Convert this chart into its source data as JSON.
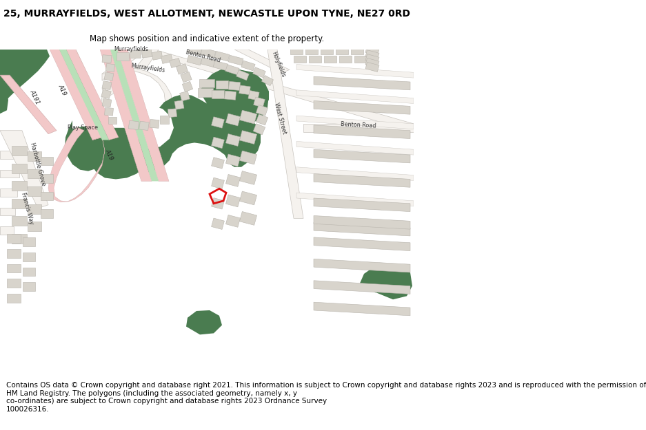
{
  "title": "25, MURRAYFIELDS, WEST ALLOTMENT, NEWCASTLE UPON TYNE, NE27 0RD",
  "subtitle": "Map shows position and indicative extent of the property.",
  "footer": "Contains OS data © Crown copyright and database right 2021. This information is subject to Crown copyright and database rights 2023 and is reproduced with the permission of\nHM Land Registry. The polygons (including the associated geometry, namely x, y\nco-ordinates) are subject to Crown copyright and database rights 2023 Ordnance Survey\n100026316.",
  "green": "#4a7c50",
  "light_green_road": "#b8e0b8",
  "pink_road": "#f2c8c8",
  "building": "#d8d4cc",
  "bedge": "#b8b4ac",
  "road_white": "#f5f2ee",
  "red": "#dd1111",
  "title_fs": 10,
  "footer_fs": 7.5
}
